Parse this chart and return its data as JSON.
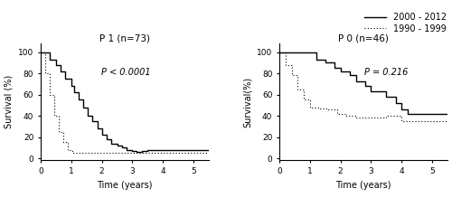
{
  "left_title": "P 1 (n=73)",
  "right_title": "P 0 (n=46)",
  "left_pvalue": "P < 0.0001",
  "right_pvalue": "P = 0.216",
  "legend_solid": "2000 - 2012",
  "legend_dotted": "1990 - 1999",
  "xlabel": "Time (years)",
  "ylabel_left": "Survival (%)",
  "ylabel_right": "Survival(%)",
  "xticks": [
    0,
    1,
    2,
    3,
    4,
    5
  ],
  "yticks": [
    0,
    20,
    40,
    60,
    80,
    100
  ],
  "xlim": [
    0,
    5.5
  ],
  "ylim": [
    -2,
    108
  ],
  "p1_solid_x": [
    0,
    0.3,
    0.5,
    0.65,
    0.8,
    1.0,
    1.1,
    1.25,
    1.4,
    1.55,
    1.7,
    1.85,
    2.0,
    2.15,
    2.3,
    2.5,
    2.65,
    2.8,
    3.0,
    3.15,
    3.3,
    3.5,
    5.5
  ],
  "p1_solid_y": [
    100,
    93,
    88,
    82,
    75,
    68,
    62,
    55,
    48,
    40,
    35,
    28,
    22,
    18,
    14,
    12,
    10,
    8,
    7,
    6,
    7,
    8,
    8
  ],
  "p1_dotted_x": [
    0,
    0.15,
    0.3,
    0.45,
    0.6,
    0.75,
    0.9,
    1.05,
    1.2,
    5.5
  ],
  "p1_dotted_y": [
    100,
    80,
    60,
    40,
    25,
    15,
    8,
    5,
    5,
    5
  ],
  "p0_solid_x": [
    0,
    1.0,
    1.2,
    1.5,
    1.8,
    2.0,
    2.3,
    2.5,
    2.8,
    3.0,
    3.5,
    3.8,
    4.0,
    4.2,
    5.5
  ],
  "p0_solid_y": [
    100,
    100,
    93,
    90,
    85,
    82,
    78,
    72,
    68,
    63,
    58,
    52,
    46,
    42,
    42
  ],
  "p0_dotted_x": [
    0,
    0.2,
    0.4,
    0.6,
    0.8,
    1.0,
    1.3,
    1.6,
    1.9,
    2.2,
    2.5,
    3.5,
    4.0,
    5.5
  ],
  "p0_dotted_y": [
    100,
    88,
    78,
    65,
    55,
    48,
    47,
    46,
    42,
    40,
    38,
    40,
    35,
    35
  ],
  "line_color": "#000000",
  "bg_color": "#ffffff",
  "fontsize_title": 7.5,
  "fontsize_axis": 6.5,
  "fontsize_label": 7,
  "fontsize_pvalue": 7,
  "fontsize_legend": 7
}
